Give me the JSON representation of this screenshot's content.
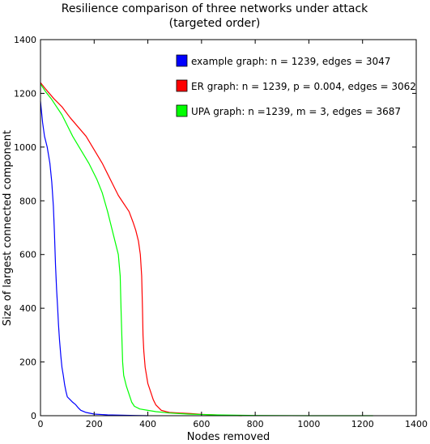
{
  "chart_data": {
    "type": "line",
    "title": "Resilience comparison of three networks under attack",
    "subtitle": "(targeted order)",
    "xlabel": "Nodes removed",
    "ylabel": "Size of largest connected component",
    "xlim": [
      0,
      1400
    ],
    "ylim": [
      0,
      1400
    ],
    "xticks": [
      0,
      200,
      400,
      600,
      800,
      1000,
      1200,
      1400
    ],
    "yticks": [
      0,
      200,
      400,
      600,
      800,
      1000,
      1200,
      1400
    ],
    "grid": false,
    "legend": "top-right",
    "series": [
      {
        "name": "example graph: n = 1239, edges = 3047",
        "color": "#0000ff",
        "points": [
          [
            0,
            1170
          ],
          [
            3,
            1140
          ],
          [
            8,
            1090
          ],
          [
            15,
            1040
          ],
          [
            25,
            1000
          ],
          [
            35,
            940
          ],
          [
            42,
            870
          ],
          [
            48,
            780
          ],
          [
            52,
            680
          ],
          [
            56,
            560
          ],
          [
            60,
            470
          ],
          [
            64,
            400
          ],
          [
            67,
            340
          ],
          [
            71,
            280
          ],
          [
            76,
            220
          ],
          [
            80,
            180
          ],
          [
            85,
            150
          ],
          [
            90,
            115
          ],
          [
            95,
            90
          ],
          [
            100,
            70
          ],
          [
            110,
            60
          ],
          [
            120,
            50
          ],
          [
            130,
            42
          ],
          [
            140,
            30
          ],
          [
            150,
            20
          ],
          [
            170,
            12
          ],
          [
            200,
            6
          ],
          [
            250,
            3
          ],
          [
            300,
            2
          ],
          [
            350,
            1
          ],
          [
            400,
            0
          ]
        ]
      },
      {
        "name": "ER graph: n = 1239, p = 0.004, edges = 3062",
        "color": "#ff0000",
        "points": [
          [
            0,
            1240
          ],
          [
            20,
            1215
          ],
          [
            50,
            1180
          ],
          [
            80,
            1150
          ],
          [
            110,
            1110
          ],
          [
            140,
            1075
          ],
          [
            170,
            1040
          ],
          [
            200,
            990
          ],
          [
            230,
            940
          ],
          [
            250,
            900
          ],
          [
            270,
            860
          ],
          [
            290,
            820
          ],
          [
            310,
            790
          ],
          [
            330,
            760
          ],
          [
            345,
            720
          ],
          [
            355,
            690
          ],
          [
            365,
            650
          ],
          [
            372,
            600
          ],
          [
            377,
            520
          ],
          [
            380,
            400
          ],
          [
            382,
            300
          ],
          [
            385,
            240
          ],
          [
            390,
            180
          ],
          [
            400,
            120
          ],
          [
            410,
            90
          ],
          [
            420,
            60
          ],
          [
            430,
            40
          ],
          [
            450,
            20
          ],
          [
            480,
            12
          ],
          [
            520,
            10
          ],
          [
            560,
            8
          ],
          [
            600,
            5
          ],
          [
            650,
            3
          ],
          [
            700,
            1
          ],
          [
            750,
            0
          ]
        ]
      },
      {
        "name": "UPA graph: n =1239, m = 3, edges = 3687",
        "color": "#00ff00",
        "points": [
          [
            0,
            1235
          ],
          [
            20,
            1205
          ],
          [
            40,
            1180
          ],
          [
            60,
            1150
          ],
          [
            80,
            1120
          ],
          [
            100,
            1080
          ],
          [
            120,
            1040
          ],
          [
            150,
            990
          ],
          [
            180,
            940
          ],
          [
            210,
            880
          ],
          [
            230,
            830
          ],
          [
            250,
            760
          ],
          [
            265,
            700
          ],
          [
            280,
            640
          ],
          [
            290,
            600
          ],
          [
            297,
            520
          ],
          [
            300,
            400
          ],
          [
            303,
            300
          ],
          [
            306,
            200
          ],
          [
            310,
            150
          ],
          [
            320,
            110
          ],
          [
            330,
            80
          ],
          [
            340,
            50
          ],
          [
            350,
            35
          ],
          [
            370,
            25
          ],
          [
            400,
            20
          ],
          [
            430,
            15
          ],
          [
            480,
            10
          ],
          [
            550,
            6
          ],
          [
            650,
            3
          ],
          [
            800,
            1
          ],
          [
            1000,
            0
          ],
          [
            1239,
            0
          ]
        ]
      }
    ]
  }
}
